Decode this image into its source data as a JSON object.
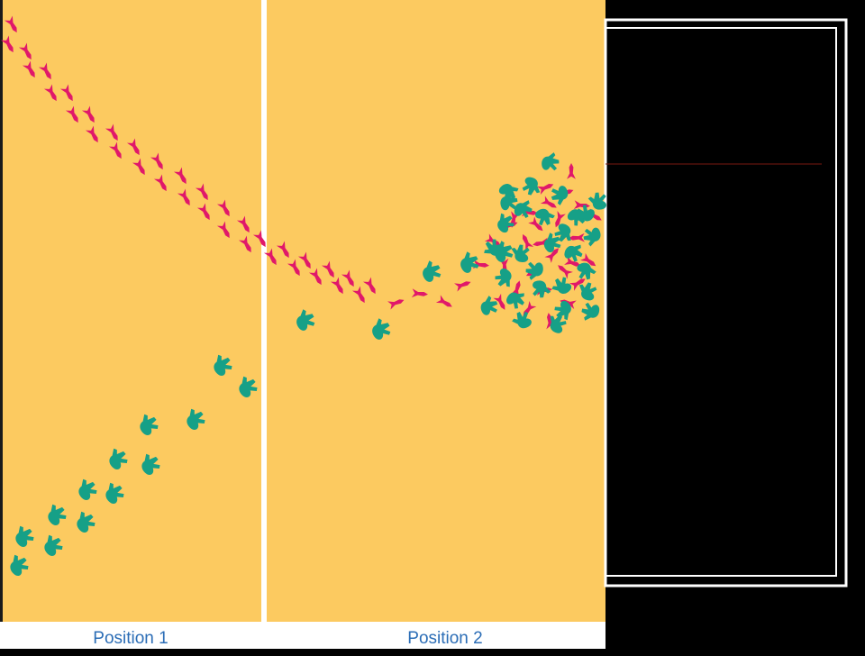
{
  "captions": {
    "left": "Position 1",
    "right": "Position 2"
  },
  "colors": {
    "page_background": "#000000",
    "panel_background": "#FCCA60",
    "caption_strip": "#FFFFFF",
    "caption_text": "#2B6DB6",
    "divider": "#FFFFFF",
    "magenta_footprint": "#E0186A",
    "teal_footprint": "#16A087",
    "frame_border": "#FFFFFF",
    "rule_line": "#7A1A10"
  },
  "icons": {
    "magenta": "small-bird-footprint-icon",
    "teal": "large-dinosaur-footprint-icon"
  }
}
